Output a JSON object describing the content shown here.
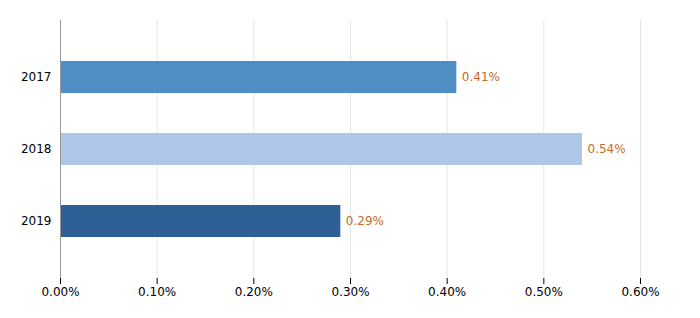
{
  "chart_data": {
    "type": "bar",
    "orientation": "horizontal",
    "categories": [
      "2019",
      "2018",
      "2017"
    ],
    "values": [
      0.0029,
      0.0054,
      0.0041
    ],
    "value_labels": [
      "0.29%",
      "0.54%",
      "0.41%"
    ],
    "colors": [
      "#2e6096",
      "#aec6e8",
      "#4e8ec4"
    ],
    "data_labels": true,
    "xlim": [
      0,
      0.006
    ],
    "xticks": [
      {
        "value": 0.0,
        "label": "0.00%"
      },
      {
        "value": 0.001,
        "label": "0.10%"
      },
      {
        "value": 0.002,
        "label": "0.20%"
      },
      {
        "value": 0.003,
        "label": "0.30%"
      },
      {
        "value": 0.004,
        "label": "0.40%"
      },
      {
        "value": 0.005,
        "label": "0.50%"
      },
      {
        "value": 0.006,
        "label": "0.60%"
      }
    ],
    "grid": true
  }
}
